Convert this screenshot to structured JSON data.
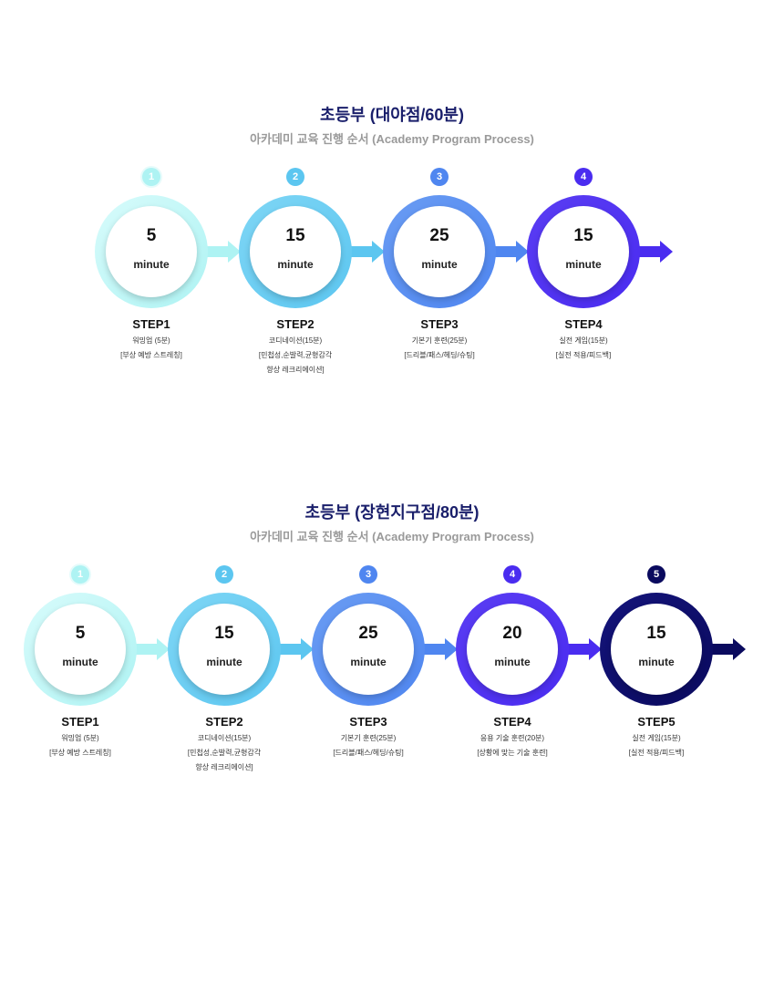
{
  "sections": [
    {
      "title": "초등부 (대야점/60분)",
      "subtitle": "아카데미 교육 진행 순서 (Academy Program Process)",
      "unit_label": "minute",
      "steps": [
        {
          "badge": "1",
          "minutes": "5",
          "step": "STEP1",
          "desc": [
            "워밍업 (5분)",
            "[부상 예방 스트레칭]"
          ],
          "color": "#aef3f3",
          "color2": "#d8fbfb"
        },
        {
          "badge": "2",
          "minutes": "15",
          "step": "STEP2",
          "desc": [
            "코디네이션(15분)",
            "[민첩성,순발력,균형감각",
            "향상 레크리에이션]"
          ],
          "color": "#5cc6f0",
          "color2": "#7fd6f5"
        },
        {
          "badge": "3",
          "minutes": "25",
          "step": "STEP3",
          "desc": [
            "기본기 훈련(25분)",
            "[드리블/패스/헤딩/슈팅]"
          ],
          "color": "#4f86f0",
          "color2": "#6a9cf3"
        },
        {
          "badge": "4",
          "minutes": "15",
          "step": "STEP4",
          "desc": [
            "실전 게임(15분)",
            "[실전 적용/피드백]"
          ],
          "color": "#4a2cf0",
          "color2": "#5a3df3"
        }
      ]
    },
    {
      "title": "초등부 (장현지구점/80분)",
      "subtitle": "아카데미 교육 진행 순서 (Academy Program Process)",
      "unit_label": "minute",
      "steps": [
        {
          "badge": "1",
          "minutes": "5",
          "step": "STEP1",
          "desc": [
            "워밍업 (5분)",
            "[부상 예방 스트레칭]"
          ],
          "color": "#aef3f3",
          "color2": "#d8fbfb"
        },
        {
          "badge": "2",
          "minutes": "15",
          "step": "STEP2",
          "desc": [
            "코디네이션(15분)",
            "[민첩성,순발력,균형감각",
            "향상 레크리에이션]"
          ],
          "color": "#5cc6f0",
          "color2": "#7fd6f5"
        },
        {
          "badge": "3",
          "minutes": "25",
          "step": "STEP3",
          "desc": [
            "기본기 훈련(25분)",
            "[드리블/패스/헤딩/슈팅]"
          ],
          "color": "#4f86f0",
          "color2": "#6a9cf3"
        },
        {
          "badge": "4",
          "minutes": "20",
          "step": "STEP4",
          "desc": [
            "응용 기술 훈련(20분)",
            "[상황에 맞는 기술 훈련]"
          ],
          "color": "#4a2cf0",
          "color2": "#5a3df3"
        },
        {
          "badge": "5",
          "minutes": "15",
          "step": "STEP5",
          "desc": [
            "실전 게임(15분)",
            "[실전 적용/피드백]"
          ],
          "color": "#0a0a5e",
          "color2": "#14147a"
        }
      ]
    }
  ]
}
